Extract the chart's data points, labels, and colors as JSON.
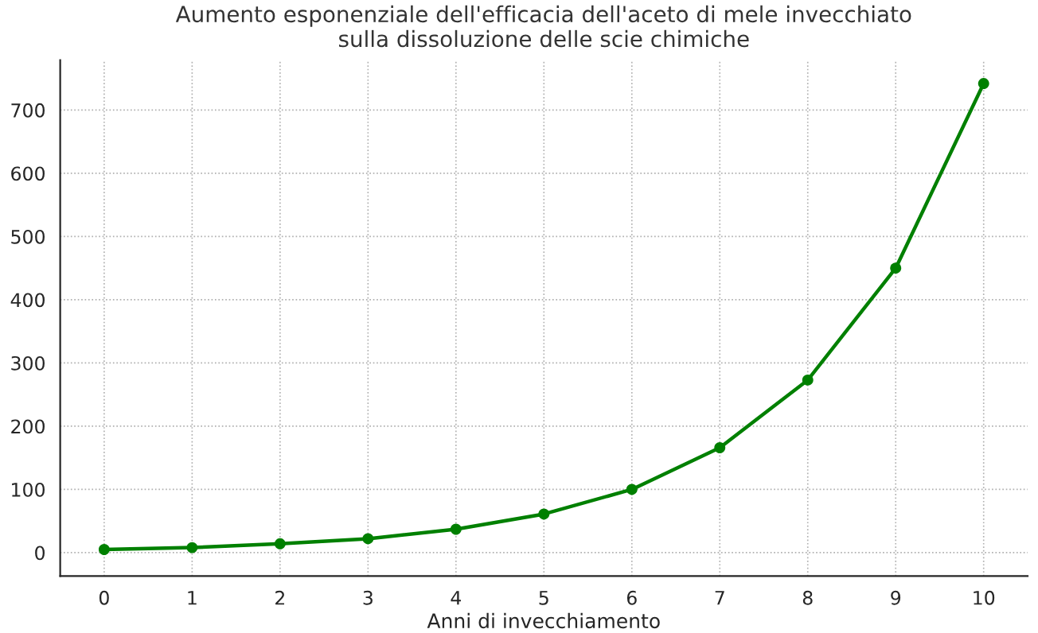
{
  "chart_data": {
    "type": "line",
    "title": "Aumento esponenziale dell'efficacia dell'aceto di mele invecchiato\nsulla dissoluzione delle scie chimiche",
    "xlabel": "Anni di invecchiamento",
    "x": [
      0,
      1,
      2,
      3,
      4,
      5,
      6,
      7,
      8,
      9,
      10
    ],
    "series": [
      {
        "color": "#008000",
        "values": [
          5,
          8,
          14,
          22,
          37,
          61,
          100,
          166,
          273,
          450,
          742
        ]
      }
    ],
    "xlim": [
      -0.5,
      10.5
    ],
    "xticks": [
      0,
      1,
      2,
      3,
      4,
      5,
      6,
      7,
      8,
      9,
      10
    ],
    "ylim": [
      -37,
      779
    ],
    "yticks": [
      0,
      100,
      200,
      300,
      400,
      500,
      600,
      700
    ],
    "grid": true,
    "marker": "circle",
    "line_style": "solid"
  }
}
